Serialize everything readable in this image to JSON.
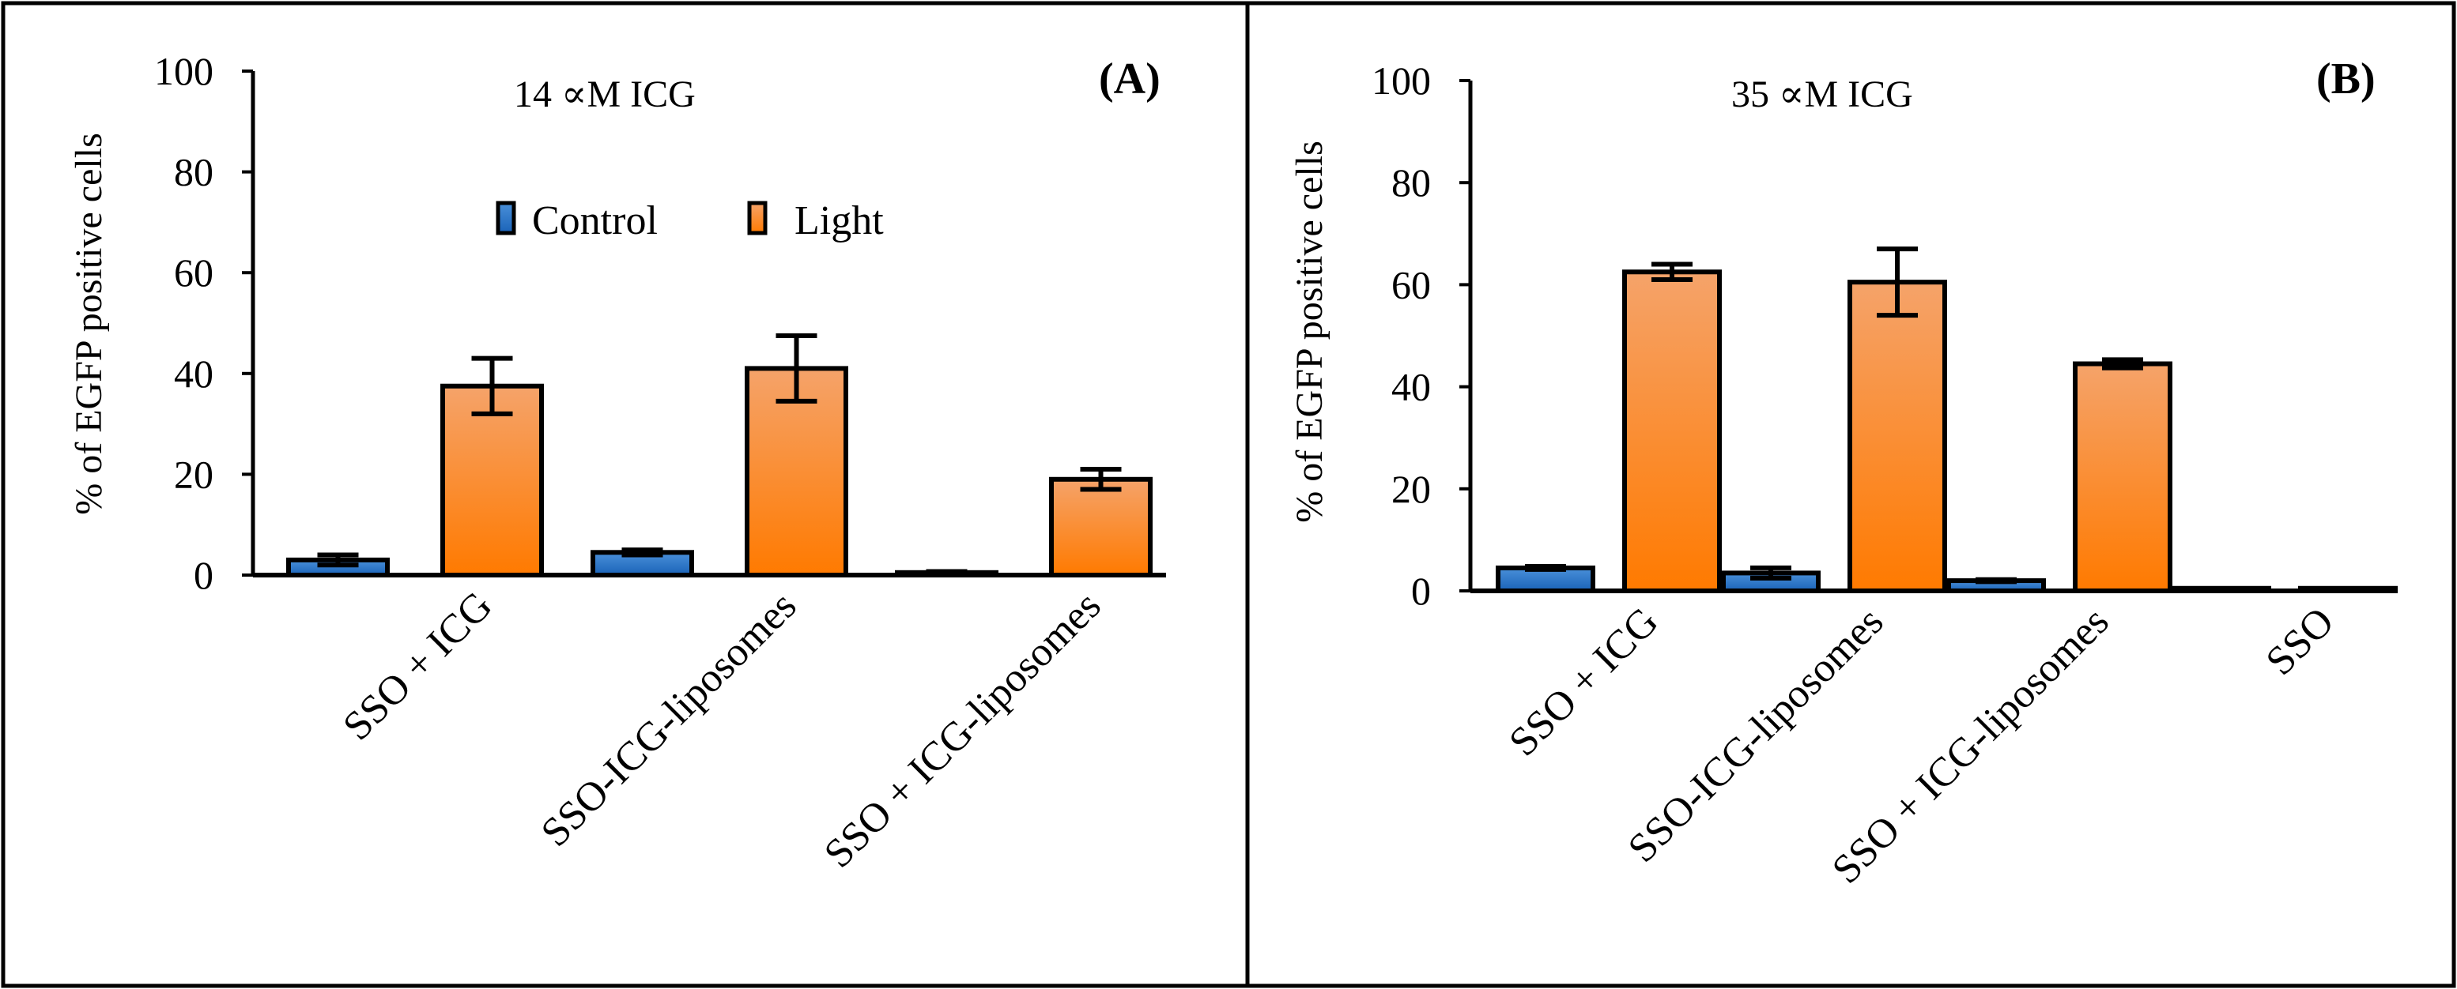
{
  "chart_data": [
    {
      "panel_label": "(A)",
      "type": "bar",
      "annotation": "14 ∝M ICG",
      "ylabel": "% of EGFP positive cells",
      "ylim": [
        0,
        100
      ],
      "yticks": [
        "0",
        "20",
        "40",
        "60",
        "80",
        "100"
      ],
      "categories": [
        "SSO + ICG",
        "SSO-ICG-liposomes",
        "SSO + ICG-liposomes"
      ],
      "series": [
        {
          "name": "Control",
          "color": "#2f78c8",
          "values": [
            3,
            4.5,
            0.5
          ],
          "errors": [
            1,
            0.5,
            0.2
          ]
        },
        {
          "name": "Light",
          "color": "#ff7f0e",
          "values": [
            37.5,
            41,
            19
          ],
          "errors": [
            5.5,
            6.5,
            2
          ]
        }
      ],
      "legend": {
        "items": [
          "Control",
          "Light"
        ],
        "placement": "top-center"
      }
    },
    {
      "panel_label": "(B)",
      "type": "bar",
      "annotation": "35 ∝M ICG",
      "ylabel": "% of EGFP positive cells",
      "ylim": [
        0,
        100
      ],
      "yticks": [
        "0",
        "20",
        "40",
        "60",
        "80",
        "100"
      ],
      "categories": [
        "SSO + ICG",
        "SSO-ICG-liposomes",
        "SSO + ICG-liposomes",
        "SSO"
      ],
      "series": [
        {
          "name": "Control",
          "color": "#2f78c8",
          "values": [
            4.5,
            3.5,
            2,
            0.5
          ],
          "errors": [
            0.3,
            1,
            0.2,
            0.1
          ]
        },
        {
          "name": "Light",
          "color": "#ff7f0e",
          "values": [
            62.5,
            60.5,
            44.5,
            0.5
          ],
          "errors": [
            1.5,
            6.5,
            0.8,
            0.1
          ]
        }
      ]
    }
  ]
}
